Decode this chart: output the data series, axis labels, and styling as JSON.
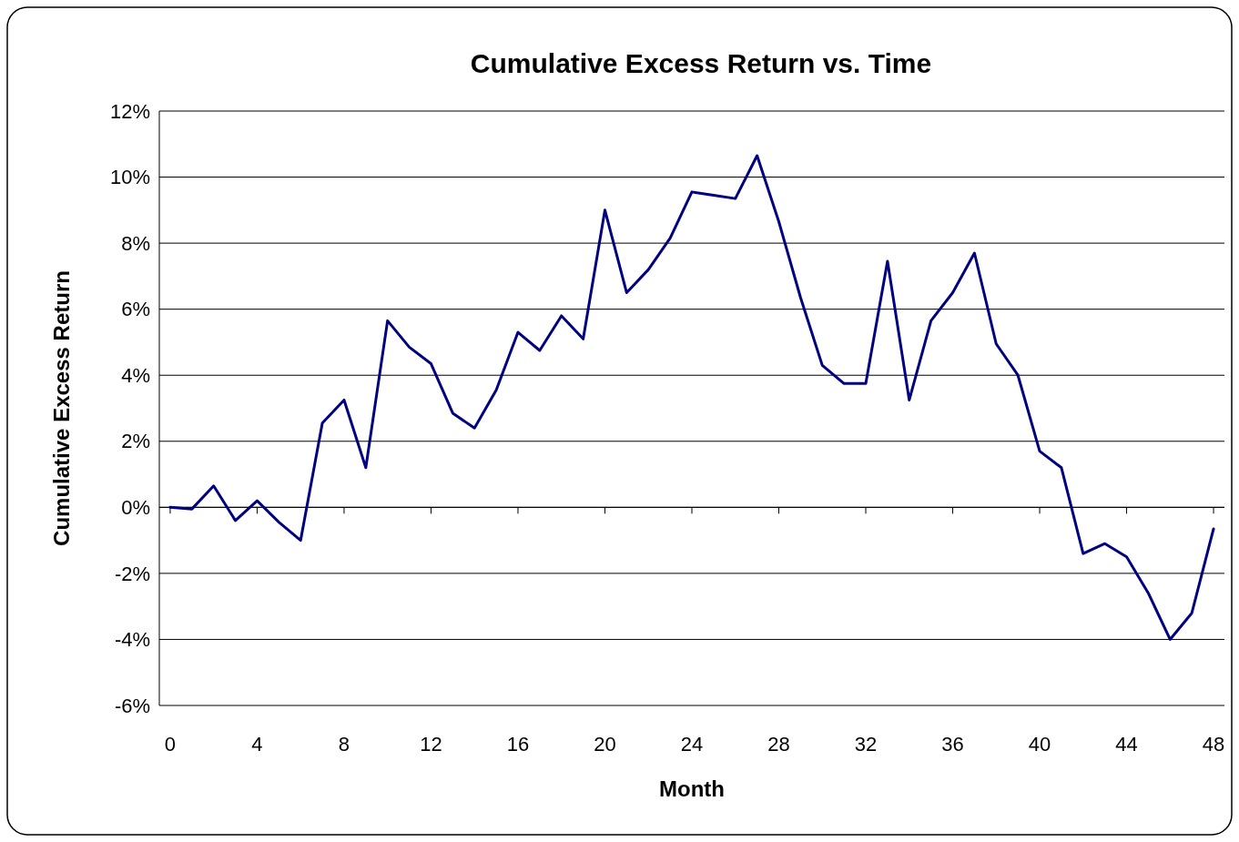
{
  "chart_data": {
    "type": "line",
    "title": "Cumulative Excess Return vs. Time",
    "xlabel": "Month",
    "ylabel": "Cumulative Excess Return",
    "x": [
      0,
      1,
      2,
      3,
      4,
      5,
      6,
      7,
      8,
      9,
      10,
      11,
      12,
      13,
      14,
      15,
      16,
      17,
      18,
      19,
      20,
      21,
      22,
      23,
      24,
      25,
      26,
      27,
      28,
      29,
      30,
      31,
      32,
      33,
      34,
      35,
      36,
      37,
      38,
      39,
      40,
      41,
      42,
      43,
      44,
      45,
      46,
      47,
      48
    ],
    "series": [
      {
        "color": "#000080",
        "values": [
          0,
          -0.05,
          0.65,
          -0.4,
          0.2,
          -0.45,
          -1.0,
          2.55,
          3.25,
          1.2,
          5.65,
          4.85,
          4.35,
          2.85,
          2.4,
          3.55,
          5.3,
          4.75,
          5.8,
          5.1,
          9.0,
          6.5,
          7.2,
          8.15,
          9.55,
          9.45,
          9.35,
          10.65,
          8.65,
          6.35,
          4.3,
          3.75,
          3.75,
          7.45,
          3.25,
          5.65,
          6.5,
          7.7,
          4.95,
          4.0,
          1.7,
          1.2,
          -1.4,
          -1.1,
          -1.5,
          -2.6,
          -4.0,
          -3.2,
          -0.65
        ]
      }
    ],
    "xlim": [
      -0.5,
      48.5
    ],
    "xticks": [
      0,
      4,
      8,
      12,
      16,
      20,
      24,
      28,
      32,
      36,
      40,
      44,
      48
    ],
    "ylim": [
      -6,
      12
    ],
    "yticks": [
      {
        "value": -6,
        "label": "-6%"
      },
      {
        "value": -4,
        "label": "-4%"
      },
      {
        "value": -2,
        "label": "-2%"
      },
      {
        "value": 0,
        "label": "0%"
      },
      {
        "value": 2,
        "label": "2%"
      },
      {
        "value": 4,
        "label": "4%"
      },
      {
        "value": 6,
        "label": "6%"
      },
      {
        "value": 8,
        "label": "8%"
      },
      {
        "value": 10,
        "label": "10%"
      },
      {
        "value": 12,
        "label": "12%"
      }
    ],
    "grid": "y",
    "marker": "none",
    "line_style": "solid"
  }
}
